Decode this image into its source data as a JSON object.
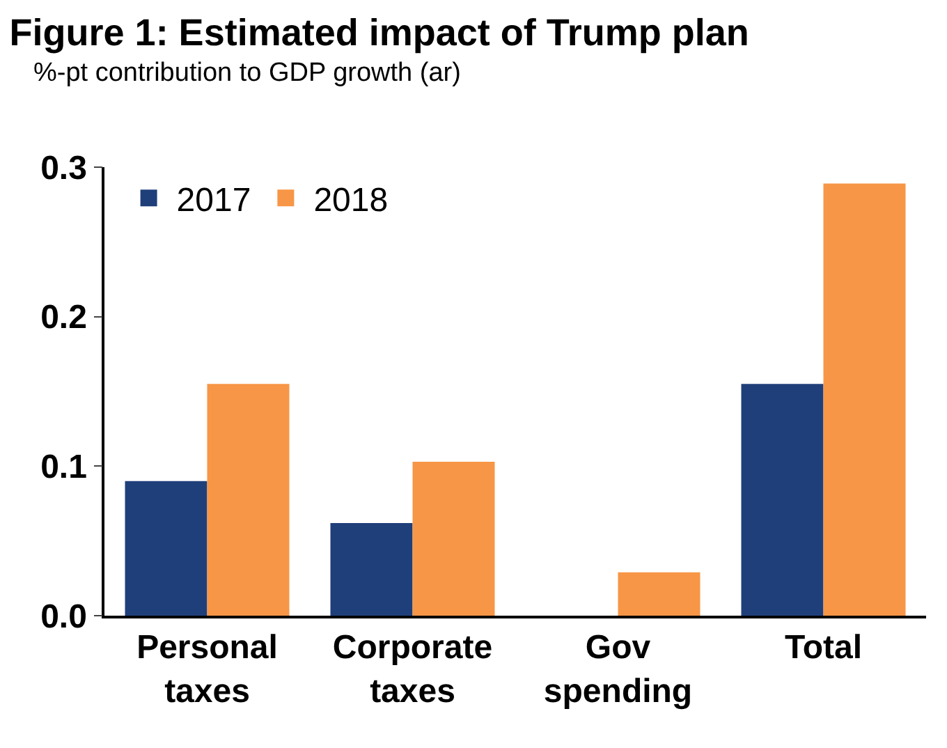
{
  "chart_data": {
    "type": "bar",
    "title": "Figure 1: Estimated impact of Trump plan",
    "subtitle": "%-pt contribution to GDP growth (ar)",
    "categories": [
      "Personal\ntaxes",
      "Corporate\ntaxes",
      "Gov\nspending",
      "Total"
    ],
    "series": [
      {
        "name": "2017",
        "color": "#1f3f7a",
        "values": [
          0.09,
          0.062,
          0,
          0.155
        ]
      },
      {
        "name": "2018",
        "color": "#f79646",
        "values": [
          0.155,
          0.103,
          0.029,
          0.289
        ]
      }
    ],
    "ylim": [
      0,
      0.3
    ],
    "yticks": [
      {
        "value": 0,
        "label": "0.0"
      },
      {
        "value": 0.1,
        "label": "0.1"
      },
      {
        "value": 0.2,
        "label": "0.2"
      },
      {
        "value": 0.3,
        "label": "0.3"
      }
    ],
    "legend": "top left"
  }
}
